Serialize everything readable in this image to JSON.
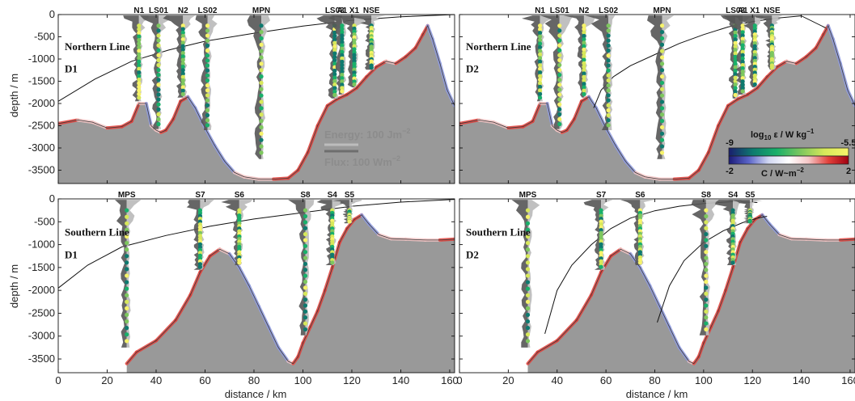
{
  "chart_data": {
    "type": "section",
    "x_axis": {
      "label": "distance / km",
      "range": [
        0,
        162
      ],
      "ticks": [
        "0",
        "20",
        "40",
        "60",
        "80",
        "100",
        "120",
        "140",
        "160"
      ]
    },
    "y_axis": {
      "label": "depth / m",
      "range": [
        -3800,
        0
      ],
      "ticks": [
        "0",
        "-500",
        "-1000",
        "-1500",
        "-2000",
        "-2500",
        "-3000",
        "-3500"
      ]
    },
    "panels": [
      {
        "id": "NL-D1",
        "line": "Northern Line",
        "deployment": "D1",
        "stations": [
          {
            "name": "N1",
            "x": 33
          },
          {
            "name": "LS01",
            "x": 41
          },
          {
            "name": "N2",
            "x": 51
          },
          {
            "name": "LS02",
            "x": 61
          },
          {
            "name": "MPN",
            "x": 83
          },
          {
            "name": "LS03",
            "x": 113
          },
          {
            "name": "A1",
            "x": 116
          },
          {
            "name": "X1",
            "x": 121
          },
          {
            "name": "NSE",
            "x": 128
          }
        ],
        "bathymetry": [
          [
            0,
            -2450
          ],
          [
            8,
            -2370
          ],
          [
            14,
            -2420
          ],
          [
            20,
            -2550
          ],
          [
            26,
            -2520
          ],
          [
            30,
            -2400
          ],
          [
            33,
            -2000
          ],
          [
            36,
            -2000
          ],
          [
            38,
            -2500
          ],
          [
            40,
            -2600
          ],
          [
            42,
            -2650
          ],
          [
            44,
            -2600
          ],
          [
            47,
            -2350
          ],
          [
            50,
            -1950
          ],
          [
            53,
            -1850
          ],
          [
            56,
            -2100
          ],
          [
            60,
            -2550
          ],
          [
            64,
            -2950
          ],
          [
            68,
            -3300
          ],
          [
            72,
            -3550
          ],
          [
            76,
            -3650
          ],
          [
            82,
            -3700
          ],
          [
            88,
            -3700
          ],
          [
            94,
            -3680
          ],
          [
            98,
            -3500
          ],
          [
            102,
            -3100
          ],
          [
            106,
            -2500
          ],
          [
            110,
            -2050
          ],
          [
            114,
            -1900
          ],
          [
            118,
            -1800
          ],
          [
            122,
            -1650
          ],
          [
            126,
            -1400
          ],
          [
            130,
            -1180
          ],
          [
            134,
            -1050
          ],
          [
            138,
            -1100
          ],
          [
            142,
            -950
          ],
          [
            146,
            -750
          ],
          [
            149,
            -450
          ],
          [
            151,
            -250
          ],
          [
            153,
            -550
          ],
          [
            156,
            -1100
          ],
          [
            159,
            -1700
          ],
          [
            162,
            -2050
          ]
        ],
        "forcing_line": [
          [
            0,
            -1950
          ],
          [
            15,
            -1450
          ],
          [
            30,
            -1050
          ],
          [
            45,
            -800
          ],
          [
            60,
            -600
          ],
          [
            80,
            -420
          ],
          [
            100,
            -260
          ],
          [
            120,
            -130
          ],
          [
            140,
            -50
          ],
          [
            162,
            0
          ]
        ]
      },
      {
        "id": "NL-D2",
        "line": "Northern Line",
        "deployment": "D2",
        "stations": [
          {
            "name": "N1",
            "x": 33
          },
          {
            "name": "LS01",
            "x": 41
          },
          {
            "name": "N2",
            "x": 51
          },
          {
            "name": "LS02",
            "x": 61
          },
          {
            "name": "MPN",
            "x": 83
          },
          {
            "name": "LS03",
            "x": 113
          },
          {
            "name": "A1",
            "x": 116
          },
          {
            "name": "X1",
            "x": 121
          },
          {
            "name": "NSE",
            "x": 128
          }
        ],
        "bathymetry": [
          [
            0,
            -2450
          ],
          [
            8,
            -2370
          ],
          [
            14,
            -2420
          ],
          [
            20,
            -2550
          ],
          [
            26,
            -2520
          ],
          [
            30,
            -2400
          ],
          [
            33,
            -2000
          ],
          [
            36,
            -2000
          ],
          [
            38,
            -2500
          ],
          [
            40,
            -2600
          ],
          [
            42,
            -2650
          ],
          [
            44,
            -2600
          ],
          [
            47,
            -2350
          ],
          [
            50,
            -1950
          ],
          [
            53,
            -1850
          ],
          [
            56,
            -2100
          ],
          [
            60,
            -2550
          ],
          [
            64,
            -2950
          ],
          [
            68,
            -3300
          ],
          [
            72,
            -3550
          ],
          [
            76,
            -3650
          ],
          [
            82,
            -3700
          ],
          [
            88,
            -3700
          ],
          [
            94,
            -3680
          ],
          [
            98,
            -3500
          ],
          [
            102,
            -3100
          ],
          [
            106,
            -2500
          ],
          [
            110,
            -2050
          ],
          [
            114,
            -1900
          ],
          [
            118,
            -1800
          ],
          [
            122,
            -1650
          ],
          [
            126,
            -1400
          ],
          [
            130,
            -1180
          ],
          [
            134,
            -1050
          ],
          [
            138,
            -1100
          ],
          [
            142,
            -950
          ],
          [
            146,
            -750
          ],
          [
            149,
            -450
          ],
          [
            151,
            -250
          ],
          [
            153,
            -550
          ],
          [
            156,
            -1100
          ],
          [
            159,
            -1700
          ],
          [
            162,
            -2050
          ]
        ],
        "forcing_line": [
          [
            55,
            -2100
          ],
          [
            58,
            -1700
          ],
          [
            63,
            -1400
          ],
          [
            70,
            -1150
          ],
          [
            80,
            -900
          ],
          [
            90,
            -650
          ],
          [
            100,
            -450
          ],
          [
            110,
            -280
          ],
          [
            120,
            -160
          ],
          [
            130,
            -80
          ],
          [
            140,
            -30
          ],
          [
            150,
            -300
          ]
        ]
      },
      {
        "id": "SL-D1",
        "line": "Southern Line",
        "deployment": "D1",
        "stations": [
          {
            "name": "MPS",
            "x": 28
          },
          {
            "name": "S7",
            "x": 58
          },
          {
            "name": "S6",
            "x": 74
          },
          {
            "name": "S8",
            "x": 101
          },
          {
            "name": "S4",
            "x": 112
          },
          {
            "name": "S5",
            "x": 119
          }
        ],
        "bathymetry": [
          [
            28,
            -3600
          ],
          [
            32,
            -3350
          ],
          [
            40,
            -3100
          ],
          [
            48,
            -2650
          ],
          [
            54,
            -2100
          ],
          [
            58,
            -1600
          ],
          [
            62,
            -1250
          ],
          [
            66,
            -1100
          ],
          [
            70,
            -1200
          ],
          [
            74,
            -1500
          ],
          [
            78,
            -1900
          ],
          [
            82,
            -2350
          ],
          [
            86,
            -2800
          ],
          [
            90,
            -3250
          ],
          [
            94,
            -3550
          ],
          [
            96,
            -3600
          ],
          [
            98,
            -3450
          ],
          [
            100,
            -3150
          ],
          [
            103,
            -2800
          ],
          [
            106,
            -2450
          ],
          [
            109,
            -2000
          ],
          [
            112,
            -1500
          ],
          [
            115,
            -950
          ],
          [
            118,
            -650
          ],
          [
            121,
            -450
          ],
          [
            124,
            -350
          ],
          [
            127,
            -550
          ],
          [
            131,
            -780
          ],
          [
            136,
            -870
          ],
          [
            142,
            -880
          ],
          [
            150,
            -900
          ],
          [
            156,
            -900
          ],
          [
            162,
            -880
          ]
        ],
        "forcing_line": [
          [
            0,
            -1950
          ],
          [
            12,
            -1450
          ],
          [
            26,
            -1050
          ],
          [
            44,
            -800
          ],
          [
            62,
            -600
          ],
          [
            80,
            -440
          ],
          [
            100,
            -300
          ],
          [
            120,
            -160
          ],
          [
            140,
            -70
          ],
          [
            162,
            -10
          ]
        ]
      },
      {
        "id": "SL-D2",
        "line": "Southern Line",
        "deployment": "D2",
        "stations": [
          {
            "name": "MPS",
            "x": 28
          },
          {
            "name": "S7",
            "x": 58
          },
          {
            "name": "S6",
            "x": 74
          },
          {
            "name": "S8",
            "x": 101
          },
          {
            "name": "S4",
            "x": 112
          },
          {
            "name": "S5",
            "x": 119
          }
        ],
        "bathymetry": [
          [
            28,
            -3600
          ],
          [
            32,
            -3350
          ],
          [
            40,
            -3100
          ],
          [
            48,
            -2650
          ],
          [
            54,
            -2100
          ],
          [
            58,
            -1600
          ],
          [
            62,
            -1250
          ],
          [
            66,
            -1100
          ],
          [
            70,
            -1200
          ],
          [
            74,
            -1500
          ],
          [
            78,
            -1900
          ],
          [
            82,
            -2350
          ],
          [
            86,
            -2800
          ],
          [
            90,
            -3250
          ],
          [
            94,
            -3550
          ],
          [
            96,
            -3600
          ],
          [
            98,
            -3450
          ],
          [
            100,
            -3150
          ],
          [
            103,
            -2800
          ],
          [
            106,
            -2450
          ],
          [
            109,
            -2000
          ],
          [
            112,
            -1500
          ],
          [
            115,
            -950
          ],
          [
            118,
            -650
          ],
          [
            121,
            -450
          ],
          [
            124,
            -350
          ],
          [
            127,
            -550
          ],
          [
            131,
            -780
          ],
          [
            136,
            -870
          ],
          [
            142,
            -880
          ],
          [
            150,
            -900
          ],
          [
            156,
            -900
          ],
          [
            162,
            -880
          ]
        ],
        "forcing_line": [
          [
            35,
            -2950
          ],
          [
            40,
            -2000
          ],
          [
            46,
            -1450
          ],
          [
            54,
            -1000
          ],
          [
            62,
            -650
          ],
          [
            70,
            -420
          ],
          [
            80,
            -260
          ],
          [
            90,
            -160
          ],
          [
            100,
            -100
          ],
          [
            112,
            -60
          ],
          [
            122,
            -80
          ]
        ],
        "forcing_line_2": [
          [
            81,
            -2700
          ],
          [
            86,
            -1900
          ],
          [
            92,
            -1350
          ],
          [
            100,
            -950
          ],
          [
            108,
            -700
          ],
          [
            116,
            -520
          ],
          [
            122,
            -420
          ],
          [
            126,
            -380
          ]
        ]
      }
    ],
    "scale_bars": {
      "energy": "Energy: 100 Jm",
      "energy_exp": "−2",
      "flux": "Flux: 100 Wm",
      "flux_exp": "−2"
    },
    "colorbars": {
      "epsilon": {
        "label_prefix": "log",
        "label_sub": "10",
        "label_mid": " ε / W kg",
        "label_exp": "−1",
        "min": "-9",
        "max": "-5.5",
        "colors": [
          "#1a1d6e",
          "#0e7a6f",
          "#18b06a",
          "#7dc75e",
          "#d7e85a",
          "#f6f36a"
        ]
      },
      "conversion": {
        "label": "C / W~m",
        "label_exp": "−2",
        "min": "-2",
        "max": "2",
        "colors": [
          "#1b1b78",
          "#5a64c8",
          "#d2d8f2",
          "#ffffff",
          "#f5c6c6",
          "#e2403a",
          "#a00010"
        ]
      }
    },
    "colors": {
      "bathymetry": "#999999",
      "profile": "#555555",
      "profile_light": "#bdbdbd",
      "text": "#111111"
    }
  }
}
